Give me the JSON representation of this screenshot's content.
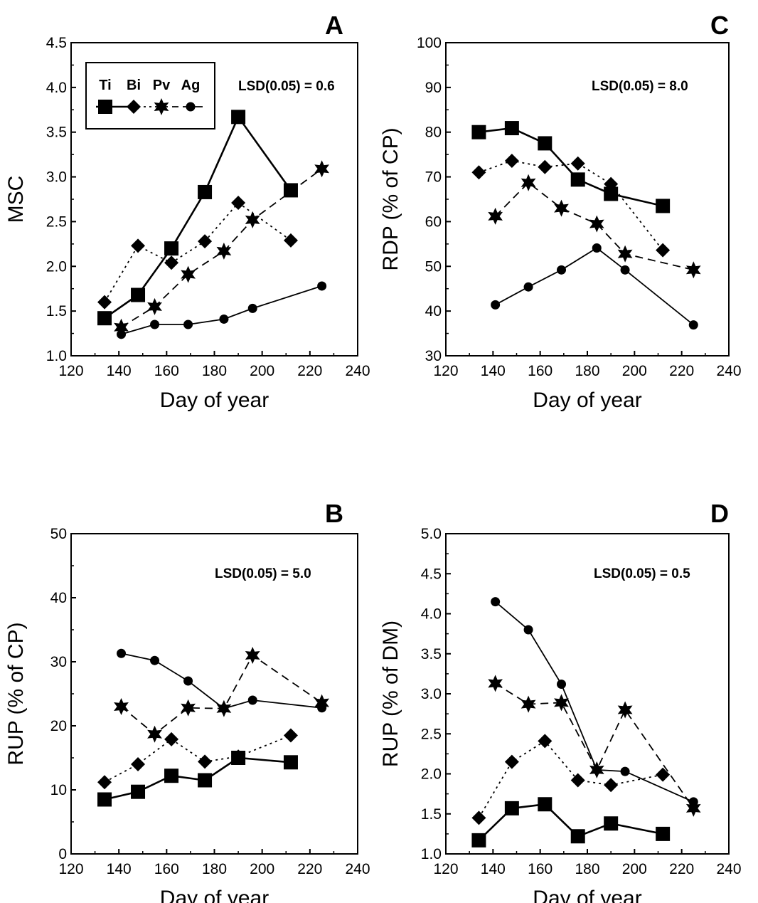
{
  "chart_data": [
    {
      "panel": "A",
      "type": "line",
      "ylabel": "MSC",
      "xlabel": "Day of year",
      "xlim": [
        120,
        240
      ],
      "ylim": [
        1.0,
        4.5
      ],
      "xticks": [
        120,
        140,
        160,
        180,
        200,
        220,
        240
      ],
      "yticks": [
        1.0,
        1.5,
        2.0,
        2.5,
        3.0,
        3.5,
        4.0,
        4.5
      ],
      "annotation": "LSD(0.05) = 0.6",
      "legend": [
        "Ti",
        "Bi",
        "Pv",
        "Ag"
      ],
      "series": [
        {
          "name": "Ti",
          "marker": "square",
          "dash": "solid",
          "x": [
            134,
            148,
            162,
            176,
            190,
            212
          ],
          "y": [
            1.42,
            1.68,
            2.2,
            2.83,
            3.67,
            2.85
          ]
        },
        {
          "name": "Bi",
          "marker": "diamond",
          "dash": "dot",
          "x": [
            134,
            148,
            162,
            176,
            190,
            212
          ],
          "y": [
            1.6,
            2.23,
            2.04,
            2.28,
            2.71,
            2.29
          ]
        },
        {
          "name": "Pv",
          "marker": "star",
          "dash": "dash",
          "x": [
            141,
            155,
            169,
            184,
            196,
            225
          ],
          "y": [
            1.32,
            1.55,
            1.91,
            2.17,
            2.52,
            3.09
          ]
        },
        {
          "name": "Ag",
          "marker": "circle",
          "dash": "solid-thin",
          "x": [
            141,
            155,
            169,
            184,
            196,
            225
          ],
          "y": [
            1.24,
            1.35,
            1.35,
            1.41,
            1.53,
            1.78
          ]
        }
      ]
    },
    {
      "panel": "C",
      "type": "line",
      "ylabel": "RDP (% of CP)",
      "xlabel": "Day of year",
      "xlim": [
        120,
        240
      ],
      "ylim": [
        30,
        100
      ],
      "xticks": [
        120,
        140,
        160,
        180,
        200,
        220,
        240
      ],
      "yticks": [
        30,
        40,
        50,
        60,
        70,
        80,
        90,
        100
      ],
      "annotation": "LSD(0.05) = 8.0",
      "series": [
        {
          "name": "Ti",
          "marker": "square",
          "dash": "solid",
          "x": [
            134,
            148,
            162,
            176,
            190,
            212
          ],
          "y": [
            80,
            80.9,
            77.5,
            69.4,
            66.2,
            63.5
          ]
        },
        {
          "name": "Bi",
          "marker": "diamond",
          "dash": "dot",
          "x": [
            134,
            148,
            162,
            176,
            190,
            212
          ],
          "y": [
            71,
            73.6,
            72.2,
            73,
            68.4,
            53.6
          ]
        },
        {
          "name": "Pv",
          "marker": "star",
          "dash": "dash",
          "x": [
            141,
            155,
            169,
            184,
            196,
            225
          ],
          "y": [
            61.2,
            68.7,
            63,
            59.5,
            52.8,
            49.2
          ]
        },
        {
          "name": "Ag",
          "marker": "circle",
          "dash": "solid-thin",
          "x": [
            141,
            155,
            169,
            184,
            196,
            225
          ],
          "y": [
            41.4,
            45.4,
            49.2,
            54.1,
            49.2,
            36.9
          ]
        }
      ]
    },
    {
      "panel": "B",
      "type": "line",
      "ylabel": "RUP (% of CP)",
      "xlabel": "Day of year",
      "xlim": [
        120,
        240
      ],
      "ylim": [
        0,
        50
      ],
      "xticks": [
        120,
        140,
        160,
        180,
        200,
        220,
        240
      ],
      "yticks": [
        0,
        10,
        20,
        30,
        40,
        50
      ],
      "annotation": "LSD(0.05) = 5.0",
      "series": [
        {
          "name": "Ti",
          "marker": "square",
          "dash": "solid",
          "x": [
            134,
            148,
            162,
            176,
            190,
            212
          ],
          "y": [
            8.5,
            9.7,
            12.2,
            11.5,
            15,
            14.3
          ]
        },
        {
          "name": "Bi",
          "marker": "diamond",
          "dash": "dot",
          "x": [
            134,
            148,
            162,
            176,
            190,
            212
          ],
          "y": [
            11.2,
            14,
            17.9,
            14.4,
            15.2,
            18.5
          ]
        },
        {
          "name": "Pv",
          "marker": "star",
          "dash": "dash",
          "x": [
            141,
            155,
            169,
            184,
            196,
            225
          ],
          "y": [
            23,
            18.7,
            22.8,
            22.7,
            31,
            23.6
          ]
        },
        {
          "name": "Ag",
          "marker": "circle",
          "dash": "solid-thin",
          "x": [
            141,
            155,
            169,
            184,
            196,
            225
          ],
          "y": [
            31.3,
            30.2,
            27,
            22.7,
            24,
            22.8
          ]
        }
      ]
    },
    {
      "panel": "D",
      "type": "line",
      "ylabel": "RUP (% of DM)",
      "xlabel": "Day of year",
      "xlim": [
        120,
        240
      ],
      "ylim": [
        1.0,
        5.0
      ],
      "xticks": [
        120,
        140,
        160,
        180,
        200,
        220,
        240
      ],
      "yticks": [
        1.0,
        1.5,
        2.0,
        2.5,
        3.0,
        3.5,
        4.0,
        4.5,
        5.0
      ],
      "annotation": "LSD(0.05) = 0.5",
      "series": [
        {
          "name": "Ti",
          "marker": "square",
          "dash": "solid",
          "x": [
            134,
            148,
            162,
            176,
            190,
            212
          ],
          "y": [
            1.17,
            1.57,
            1.62,
            1.22,
            1.38,
            1.25
          ]
        },
        {
          "name": "Bi",
          "marker": "diamond",
          "dash": "dot",
          "x": [
            134,
            148,
            162,
            176,
            190,
            212
          ],
          "y": [
            1.45,
            2.15,
            2.41,
            1.92,
            1.86,
            1.99
          ]
        },
        {
          "name": "Pv",
          "marker": "star",
          "dash": "dash",
          "x": [
            141,
            155,
            169,
            184,
            196,
            225
          ],
          "y": [
            3.13,
            2.87,
            2.89,
            2.05,
            2.8,
            1.57
          ]
        },
        {
          "name": "Ag",
          "marker": "circle",
          "dash": "solid-thin",
          "x": [
            141,
            155,
            169,
            184,
            196,
            225
          ],
          "y": [
            4.15,
            3.8,
            3.12,
            2.05,
            2.03,
            1.65
          ]
        }
      ]
    }
  ]
}
